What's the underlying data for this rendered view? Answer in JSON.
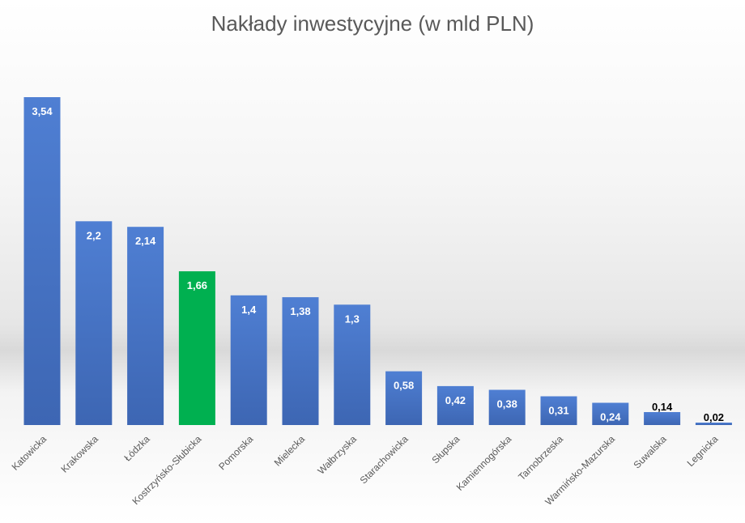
{
  "chart_data": {
    "type": "bar",
    "title": "Nakłady inwestycyjne (w mld PLN)",
    "xlabel": "",
    "ylabel": "",
    "ylim": [
      0,
      3.54
    ],
    "grid": false,
    "legend": "none",
    "categories": [
      "Katowicka",
      "Krakowska",
      "Łódzka",
      "Kostrzyńsko-Słubicka",
      "Pomorska",
      "Mielecka",
      "Wałbrzyska",
      "Starachowicka",
      "Słupska",
      "Kamiennogórska",
      "Tarnobrzeska",
      "Warmińsko-Mazurska",
      "Suwalska",
      "Legnicka"
    ],
    "values": [
      3.54,
      2.2,
      2.14,
      1.66,
      1.4,
      1.38,
      1.3,
      0.58,
      0.42,
      0.38,
      0.31,
      0.24,
      0.14,
      0.02
    ],
    "data_labels": [
      "3,54",
      "2,2",
      "2,14",
      "1,66",
      "1,4",
      "1,38",
      "1,3",
      "0,58",
      "0,42",
      "0,38",
      "0,31",
      "0,24",
      "0,14",
      "0,02"
    ],
    "colors": {
      "default_bar": "#4472c4",
      "highlight_bar": "#00b050",
      "highlight_category": "Kostrzyńsko-Słubicka",
      "label_inside": "#ffffff",
      "label_outside": "#000000"
    }
  }
}
